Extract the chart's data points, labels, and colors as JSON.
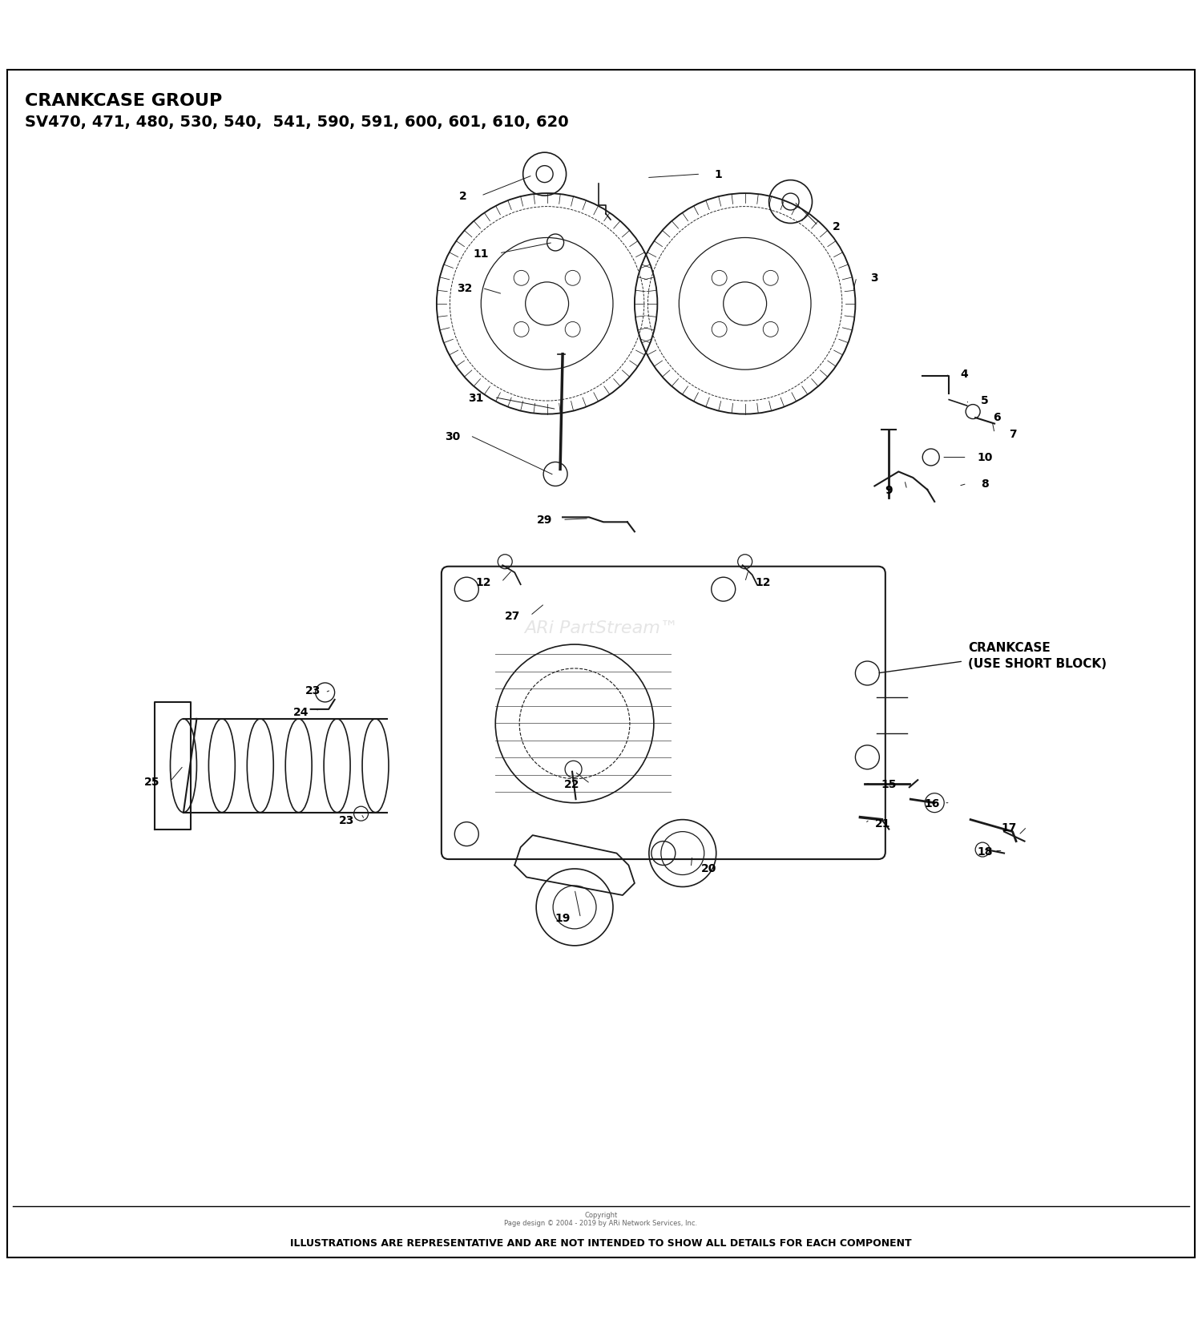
{
  "title_line1": "CRANKCASE GROUP",
  "title_line2": "SV470, 471, 480, 530, 540,  541, 590, 591, 600, 601, 610, 620",
  "footer_copyright": "Copyright\nPage design © 2004 - 2019 by ARi Network Services, Inc.",
  "footer_main": "ILLUSTRATIONS ARE REPRESENTATIVE AND ARE NOT INTENDED TO SHOW ALL DETAILS FOR EACH COMPONENT",
  "watermark": "ARi PartStream™",
  "crankcase_label": "CRANKCASE\n(USE SHORT BLOCK)",
  "bg_color": "#ffffff",
  "title_color": "#000000",
  "diagram_color": "#1a1a1a",
  "footer_color": "#000000",
  "watermark_color": "#cccccc",
  "figsize": [
    15.0,
    16.58
  ],
  "dpi": 100
}
